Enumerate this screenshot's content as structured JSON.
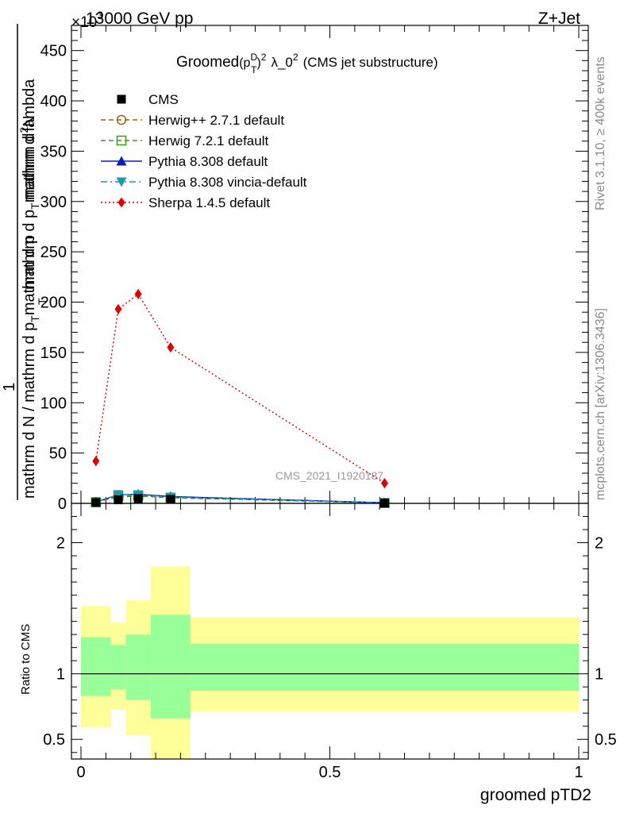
{
  "header": {
    "energy_label": "13000 GeV pp",
    "process_label": "Z+Jet",
    "scale_label": "×10",
    "scale_exponent": "3"
  },
  "side_labels": {
    "rivet": "Rivet 3.1.10, ≥ 400k events",
    "mcplots": "mcplots.cern.ch [arXiv:1306.3436]"
  },
  "watermark": "CMS_2021_I1920187",
  "chart_data": [
    {
      "type": "line",
      "panel": "main",
      "title": "Groomed (p_T^D)^2 λ_0^2 (CMS jet substructure)",
      "title_parts": {
        "prefix": "Groomed",
        "sup_d": "D",
        "sub_t": "T",
        "sup_2": "2",
        "lambda": "λ_0",
        "suffix": "(CMS jet substructure)"
      },
      "ylabel_numerator": "mathrm d^2N",
      "ylabel_denominator": "mathrm d N / mathrm d p_T mathrm d p_T mathrm d lambda",
      "ylabel_parts": {
        "one": "1",
        "den_top_a": "mathrm d N / mathrm d p",
        "den_top_sub": "T",
        "den_top_b": "mathrm d p",
        "den_mid_sub": "T",
        "num_a": "mathrm d",
        "num_sup": "2",
        "num_b": "N",
        "num_den_a": "mathrm d p",
        "num_den_sub": "T",
        "num_den_b": "mathrm d lambda"
      },
      "y_scale_factor": 1000,
      "xlim": [
        0,
        1
      ],
      "ylim": [
        0,
        475
      ],
      "yticks": [
        0,
        50,
        100,
        150,
        200,
        250,
        300,
        350,
        400,
        450
      ],
      "yticklabels": [
        "0",
        "50",
        "100",
        "150",
        "200",
        "250",
        "300",
        "350",
        "400",
        "450"
      ],
      "x": [
        0.03,
        0.075,
        0.115,
        0.18,
        0.61
      ],
      "series": [
        {
          "name": "CMS",
          "values": [
            0.8,
            3.5,
            4.8,
            4.0,
            0.15
          ],
          "color": "#000000",
          "marker": "square",
          "line": "none"
        },
        {
          "name": "Herwig++ 2.7.1 default",
          "values": [
            1.5,
            6.5,
            7.2,
            5.8,
            0.5
          ],
          "color": "#a0600a",
          "marker": "circle-open",
          "line": "dashed"
        },
        {
          "name": "Herwig 7.2.1 default",
          "values": [
            1.2,
            7.0,
            7.8,
            5.5,
            0.4
          ],
          "color": "#3a9a1a",
          "marker": "square-open",
          "line": "dashed"
        },
        {
          "name": "Pythia 8.308 default",
          "values": [
            1.3,
            8.5,
            9.0,
            6.8,
            0.6
          ],
          "color": "#0b1cb8",
          "marker": "triangle-up",
          "line": "solid"
        },
        {
          "name": "Pythia 8.308 vincia-default",
          "values": [
            1.1,
            8.8,
            8.6,
            6.2,
            0.5
          ],
          "color": "#1a9ab0",
          "marker": "triangle-down",
          "line": "dashdot"
        },
        {
          "name": "Sherpa 1.4.5 default",
          "values": [
            42,
            193,
            208,
            155,
            20
          ],
          "color": "#e00000",
          "marker": "diamond",
          "line": "dotted"
        }
      ]
    },
    {
      "type": "area",
      "panel": "ratio",
      "ylabel": "Ratio to CMS",
      "xlabel": "groomed pTD2",
      "xlim": [
        0,
        1
      ],
      "ylim": [
        0.35,
        2.3
      ],
      "xticks": [
        0,
        0.5,
        1
      ],
      "xticklabels": [
        "0",
        "0.5",
        "1"
      ],
      "yticks": [
        0.5,
        1,
        2
      ],
      "yticklabels": [
        "0.5",
        "1",
        "2"
      ],
      "reference": 1,
      "bins": [
        {
          "xlo": 0.0,
          "xhi": 0.06,
          "stat_lo": 0.83,
          "stat_hi": 1.28,
          "tot_lo": 0.59,
          "tot_hi": 1.52
        },
        {
          "xlo": 0.06,
          "xhi": 0.09,
          "stat_lo": 0.88,
          "stat_hi": 1.22,
          "tot_lo": 0.73,
          "tot_hi": 1.39
        },
        {
          "xlo": 0.09,
          "xhi": 0.14,
          "stat_lo": 0.8,
          "stat_hi": 1.3,
          "tot_lo": 0.53,
          "tot_hi": 1.56
        },
        {
          "xlo": 0.14,
          "xhi": 0.22,
          "stat_lo": 0.66,
          "stat_hi": 1.45,
          "tot_lo": 0.35,
          "tot_hi": 1.82
        },
        {
          "xlo": 0.22,
          "xhi": 1.0,
          "stat_lo": 0.87,
          "stat_hi": 1.23,
          "tot_lo": 0.71,
          "tot_hi": 1.43
        }
      ]
    }
  ]
}
